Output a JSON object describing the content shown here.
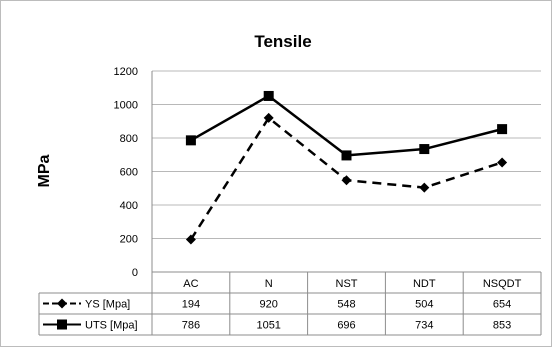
{
  "chart_data": {
    "type": "line",
    "title": "Tensile",
    "ylabel": "MPa",
    "xlabel": "",
    "ylim": [
      0,
      1200
    ],
    "yticks": [
      0,
      200,
      400,
      600,
      800,
      1000,
      1200
    ],
    "grid": true,
    "legend": "data-table-below",
    "categories": [
      "AC",
      "N",
      "NST",
      "NDT",
      "NSQDT"
    ],
    "series": [
      {
        "name": "YS [Mpa]",
        "values": [
          194,
          920,
          548,
          504,
          654
        ],
        "line_style": "dashed",
        "marker": "diamond",
        "color": "#000000"
      },
      {
        "name": "UTS [Mpa]",
        "values": [
          786,
          1051,
          696,
          734,
          853
        ],
        "line_style": "solid",
        "marker": "square",
        "color": "#000000"
      }
    ]
  }
}
